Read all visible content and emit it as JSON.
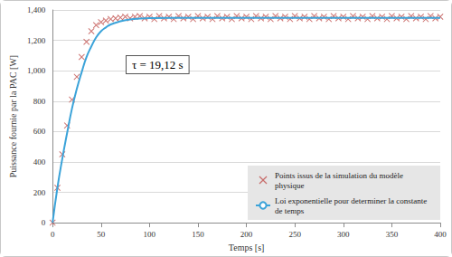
{
  "chart_data": {
    "type": "scatter",
    "x_label": "Temps [s]",
    "y_label": "Puissance fournie par la PAC [W]",
    "annotation": "τ = 19,12 s",
    "xlim": [
      0,
      400
    ],
    "xticks": [
      0,
      50,
      100,
      150,
      200,
      250,
      300,
      350,
      400
    ],
    "ylim": [
      0,
      1400
    ],
    "yticks": [
      0,
      200,
      400,
      600,
      800,
      1000,
      1200,
      1400
    ],
    "grid": true,
    "legend": "bottom-right",
    "series": [
      {
        "name": "Points issus de la simulation du modèle physique",
        "type": "scatter",
        "marker": "x",
        "color": "#c0504d",
        "x": [
          0,
          5,
          10,
          15,
          20,
          25,
          30,
          35,
          40,
          45,
          50,
          55,
          60,
          65,
          70,
          75,
          80,
          85,
          90,
          95,
          100,
          105,
          110,
          115,
          120,
          125,
          130,
          135,
          140,
          145,
          150,
          155,
          160,
          165,
          170,
          175,
          180,
          185,
          190,
          195,
          200,
          205,
          210,
          215,
          220,
          225,
          230,
          235,
          240,
          245,
          250,
          255,
          260,
          265,
          270,
          275,
          280,
          285,
          290,
          295,
          300,
          305,
          310,
          315,
          320,
          325,
          330,
          335,
          340,
          345,
          350,
          355,
          360,
          365,
          370,
          375,
          380,
          385,
          390,
          395,
          400
        ],
        "values": [
          0,
          230,
          450,
          640,
          810,
          960,
          1090,
          1190,
          1260,
          1300,
          1320,
          1330,
          1340,
          1345,
          1350,
          1355,
          1345,
          1355,
          1360,
          1345,
          1355,
          1340,
          1360,
          1345,
          1355,
          1340,
          1360,
          1345,
          1355,
          1340,
          1360,
          1345,
          1355,
          1340,
          1360,
          1345,
          1355,
          1340,
          1360,
          1345,
          1355,
          1340,
          1360,
          1345,
          1355,
          1340,
          1360,
          1345,
          1355,
          1340,
          1360,
          1345,
          1355,
          1340,
          1360,
          1345,
          1355,
          1340,
          1360,
          1345,
          1355,
          1340,
          1360,
          1345,
          1355,
          1340,
          1360,
          1345,
          1355,
          1340,
          1360,
          1345,
          1355,
          1340,
          1360,
          1345,
          1355,
          1340,
          1360,
          1345,
          1355
        ]
      },
      {
        "name": "Loi exponentielle pour determiner la constante de temps",
        "type": "line",
        "line_style": "solid",
        "color": "#3ba3d9",
        "x": [
          0,
          5,
          10,
          15,
          20,
          25,
          30,
          35,
          40,
          45,
          50,
          55,
          60,
          70,
          80,
          90,
          100,
          125,
          150,
          200,
          250,
          300,
          350,
          400
        ],
        "values": [
          0,
          230,
          420,
          590,
          750,
          880,
          990,
          1090,
          1160,
          1220,
          1260,
          1285,
          1305,
          1325,
          1337,
          1343,
          1346,
          1348,
          1348,
          1348,
          1348,
          1348,
          1348,
          1348
        ]
      }
    ]
  }
}
